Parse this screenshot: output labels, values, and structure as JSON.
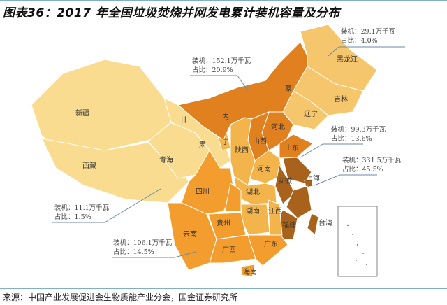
{
  "title": "图表36：2017 年全国垃圾焚烧并网发电累计装机容量及分布",
  "source": "来源：中国产业发展促进会生物质能产业分会，国金证券研究所",
  "colors": {
    "west": "#f9dc8f",
    "northeast": "#f6c66c",
    "north": "#e0801f",
    "east": "#a8621b",
    "central": "#f3b44c",
    "south": "#f29d2d",
    "border": "#ffffff",
    "leader": "#6a8aa0"
  },
  "provinces": {
    "xinjiang": "新疆",
    "xizang": "西藏",
    "qinghai": "青海",
    "gan": "甘",
    "su": "肃",
    "nei": "内",
    "meng": "蒙",
    "heilongjiang": "黑龙江",
    "jilin": "吉林",
    "liaoning": "辽宁",
    "hebei": "河北",
    "shanxi": "山西",
    "shandong": "山东",
    "shaanxi": "陕西",
    "ning": "宁",
    "henan": "河南",
    "anhui": "安徽",
    "shanghai": "上海",
    "hubei": "湖北",
    "sichuan": "四川",
    "hunan": "湖南",
    "jiangxi": "江西",
    "guizhou": "贵州",
    "yunnan": "云南",
    "guangxi": "广西",
    "guangdong": "广东",
    "fujian": "福建",
    "hainan": "海南",
    "taiwan": "台湾"
  },
  "annotations": [
    {
      "region": "northeast",
      "installed": "装机：29.1万千瓦",
      "share": "占比：4.0%"
    },
    {
      "region": "north",
      "installed": "装机：152.1万千瓦",
      "share": "占比：20.9%"
    },
    {
      "region": "central",
      "installed": "装机：99.3万千瓦",
      "share": "占比：13.6%"
    },
    {
      "region": "east",
      "installed": "装机：331.5万千瓦",
      "share": "占比：45.5%"
    },
    {
      "region": "west",
      "installed": "装机：11.1万千瓦",
      "share": "占比：1.5%"
    },
    {
      "region": "south",
      "installed": "装机：106.1万千瓦",
      "share": "占比：14.5%"
    }
  ]
}
